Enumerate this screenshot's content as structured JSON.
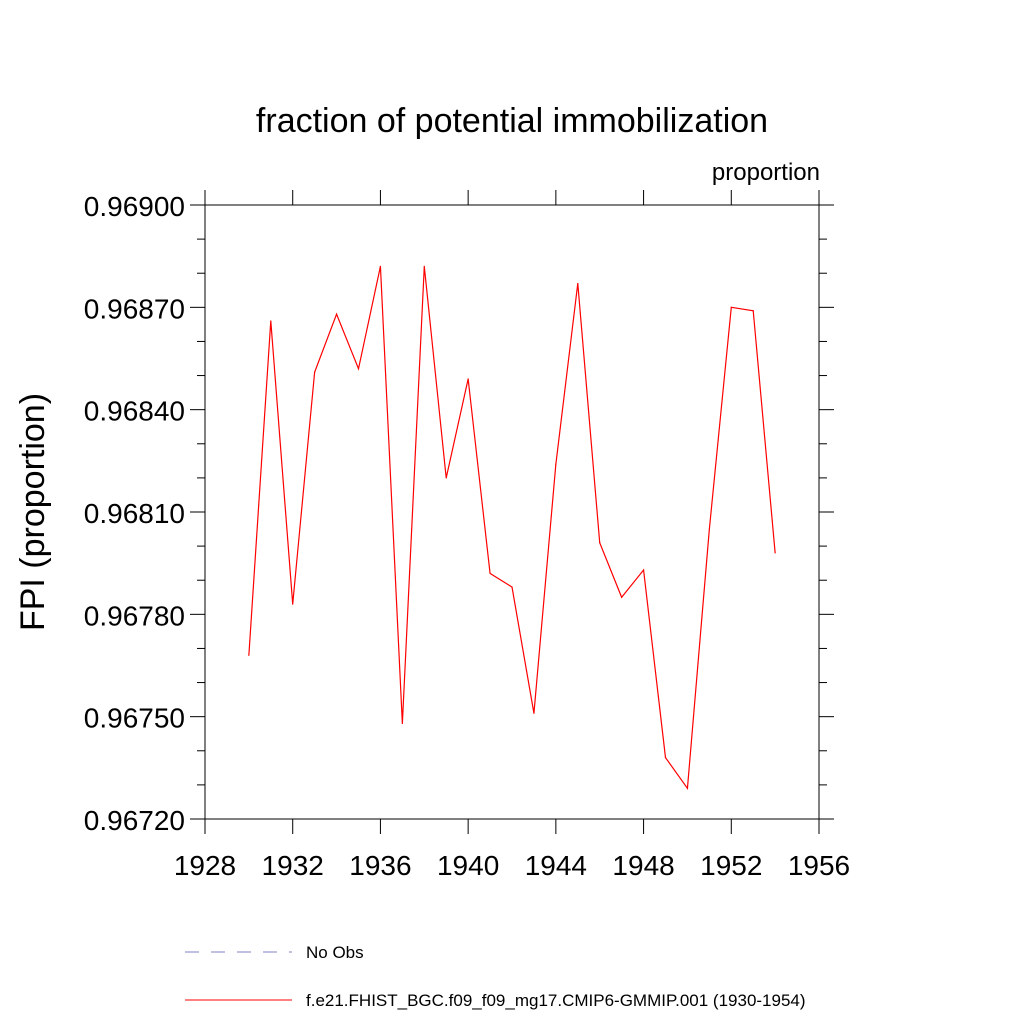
{
  "chart_data": {
    "type": "line",
    "title": "fraction of potential immobilization",
    "units_label": "proportion",
    "xlabel": "",
    "ylabel": "FPI  (proportion)",
    "xlim": [
      1928,
      1956
    ],
    "ylim": [
      0.9672,
      0.969
    ],
    "x_ticks": [
      "1928",
      "1932",
      "1936",
      "1940",
      "1944",
      "1948",
      "1952",
      "1956"
    ],
    "y_ticks": [
      "0.96720",
      "0.96750",
      "0.96780",
      "0.96810",
      "0.96840",
      "0.96870",
      "0.96900"
    ],
    "grid": false,
    "legend_position": "bottom",
    "series": [
      {
        "name": "f.e21.FHIST_BGC.f09_f09_mg17.CMIP6-GMMIP.001 (1930-1954)",
        "color": "#ff0000",
        "style": "solid",
        "x": [
          1930,
          1931,
          1932,
          1933,
          1934,
          1935,
          1936,
          1937,
          1938,
          1939,
          1940,
          1941,
          1942,
          1943,
          1944,
          1945,
          1946,
          1947,
          1948,
          1949,
          1950,
          1951,
          1952,
          1953,
          1954
        ],
        "values": [
          0.96768,
          0.96866,
          0.96783,
          0.96851,
          0.96868,
          0.96852,
          0.96882,
          0.96748,
          0.96882,
          0.9682,
          0.96849,
          0.96792,
          0.96788,
          0.96751,
          0.96824,
          0.96877,
          0.96801,
          0.96785,
          0.96793,
          0.96738,
          0.96729,
          0.96805,
          0.9687,
          0.96869,
          0.96798
        ]
      }
    ]
  },
  "legend": [
    {
      "label": "No Obs",
      "color": "#8080c0",
      "style": "dashed"
    },
    {
      "label": "f.e21.FHIST_BGC.f09_f09_mg17.CMIP6-GMMIP.001 (1930-1954)",
      "color": "#ff0000",
      "style": "solid"
    }
  ]
}
